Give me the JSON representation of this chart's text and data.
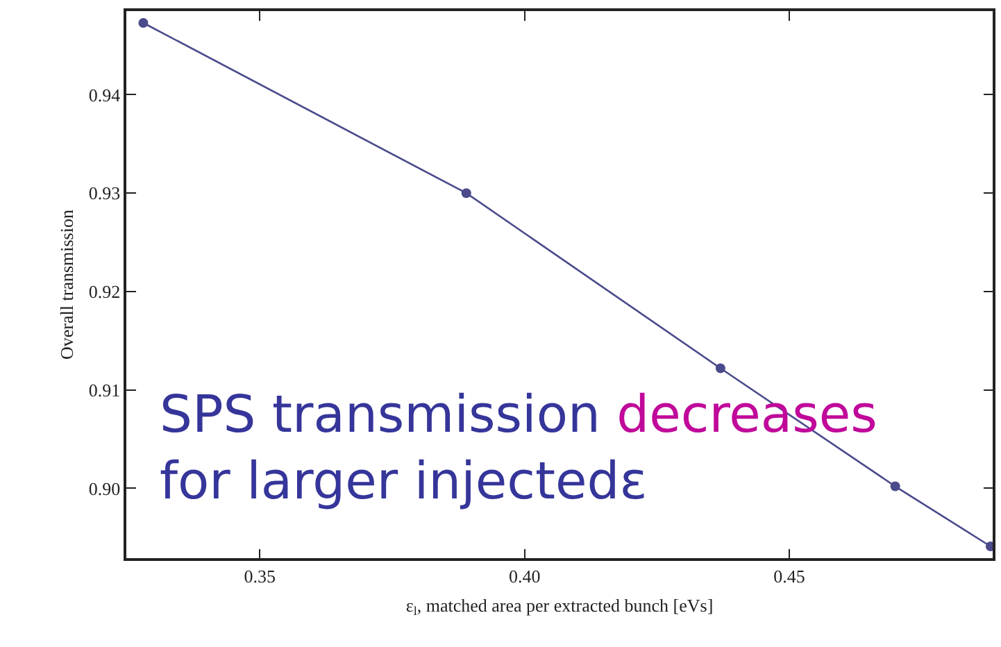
{
  "chart_data": {
    "type": "line",
    "xlabel": "ε$_{l}$, matched area per extracted bunch [eVs]",
    "ylabel": "Overall transmission",
    "x": [
      0.328,
      0.389,
      0.437,
      0.47,
      0.488
    ],
    "series": [
      {
        "color": "#4a4a8c",
        "values": [
          0.9473,
          0.93,
          0.9122,
          0.9002,
          0.8941
        ]
      }
    ],
    "xlim": [
      0.3248,
      0.4884
    ],
    "xticks": [
      {
        "value": 0.35,
        "label": "0.35"
      },
      {
        "value": 0.4,
        "label": "0.40"
      },
      {
        "value": 0.45,
        "label": "0.45"
      }
    ],
    "ylim": [
      0.8929,
      0.9485
    ],
    "yticks": [
      {
        "value": 0.9,
        "label": "0.90"
      },
      {
        "value": 0.91,
        "label": "0.91"
      },
      {
        "value": 0.92,
        "label": "0.92"
      },
      {
        "value": 0.93,
        "label": "0.93"
      },
      {
        "value": 0.94,
        "label": "0.94"
      }
    ],
    "annotations": [
      "SPS transmission",
      "decreases",
      "for larger injectedε"
    ],
    "marker": "circle",
    "line_style": "solid"
  }
}
